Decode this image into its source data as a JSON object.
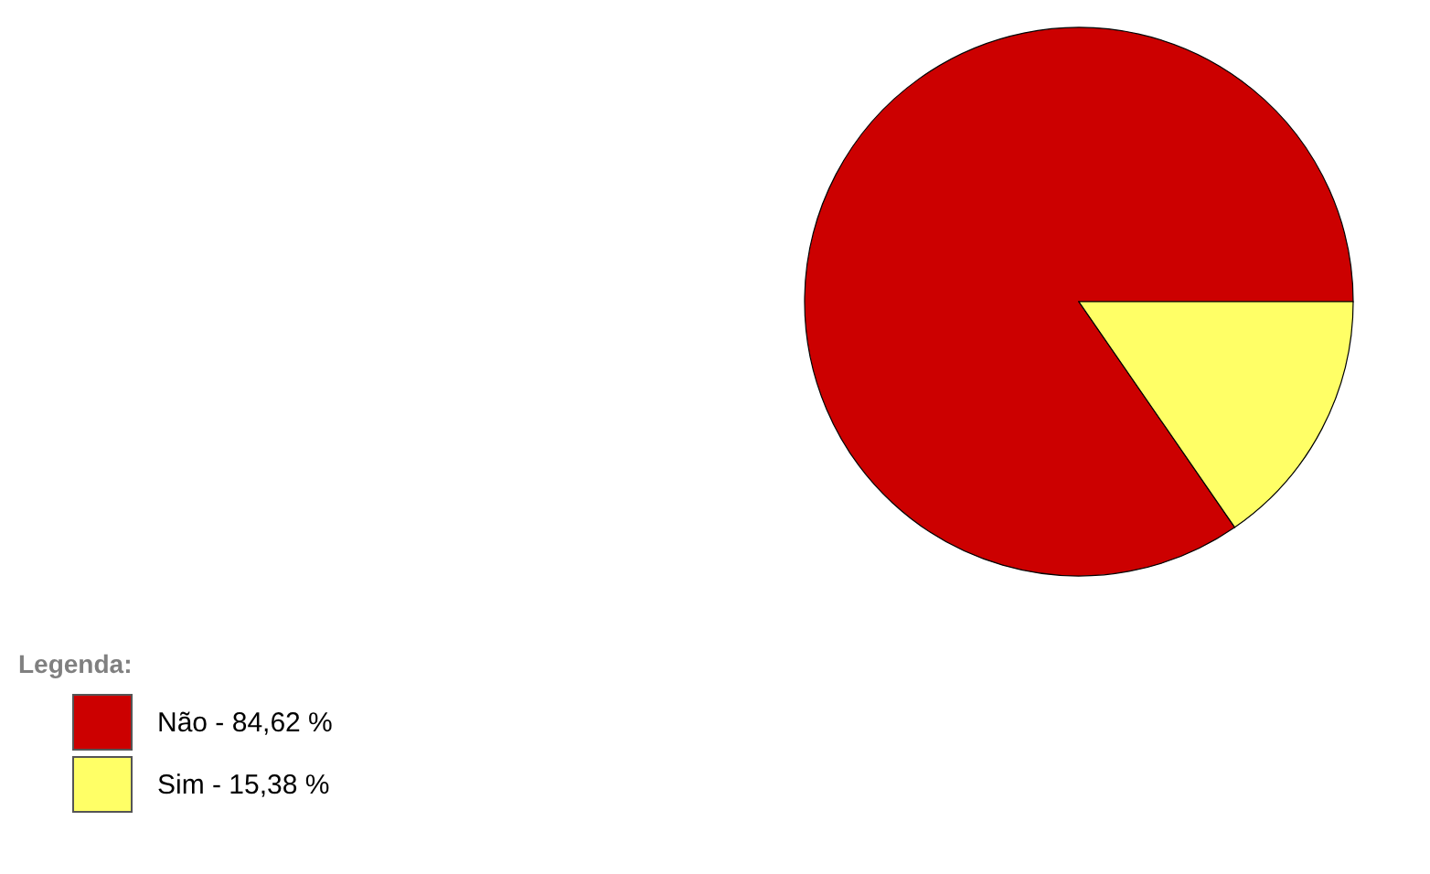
{
  "chart_data": {
    "type": "pie",
    "legend_title": "Legenda:",
    "legend": "bottom left",
    "categories": [
      "Não - 84,62 %",
      "Sim - 15,38 %"
    ],
    "values": [
      84.62,
      15.38
    ],
    "colors": [
      "#cc0000",
      "#ffff66"
    ]
  }
}
